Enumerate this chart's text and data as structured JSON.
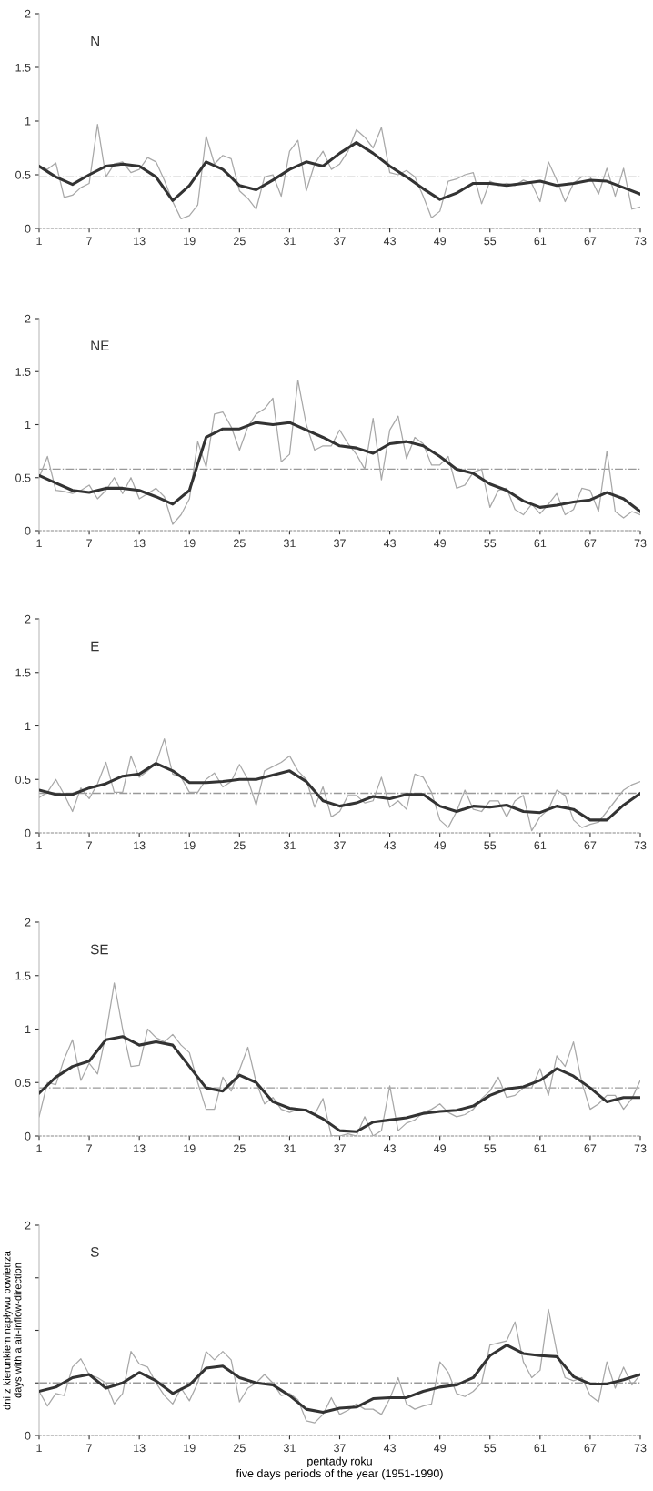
{
  "chart_data": [
    {
      "type": "line",
      "title": "N",
      "xlim": [
        1,
        73
      ],
      "xticks": [
        1,
        7,
        13,
        19,
        25,
        31,
        37,
        43,
        49,
        55,
        61,
        67,
        73
      ],
      "ylim": [
        0,
        2
      ],
      "yticks": [
        0,
        0.5,
        1,
        1.5,
        2
      ],
      "ref_lines": [
        {
          "axis": "y",
          "value": 0.48,
          "color": "#999999",
          "line_style": "dashdot"
        }
      ],
      "series": [
        {
          "color": "#a8a8a8",
          "x": [
            1,
            2,
            3,
            4,
            5,
            6,
            7,
            8,
            9,
            10,
            11,
            12,
            13,
            14,
            15,
            16,
            17,
            18,
            19,
            20,
            21,
            22,
            23,
            24,
            25,
            26,
            27,
            28,
            29,
            30,
            31,
            32,
            33,
            34,
            35,
            36,
            37,
            38,
            39,
            40,
            41,
            42,
            43,
            44,
            45,
            46,
            47,
            48,
            49,
            50,
            51,
            52,
            53,
            54,
            55,
            56,
            57,
            58,
            59,
            60,
            61,
            62,
            63,
            64,
            65,
            66,
            67,
            68,
            69,
            70,
            71,
            72,
            73
          ],
          "values": [
            0.58,
            0.55,
            0.61,
            0.29,
            0.31,
            0.38,
            0.42,
            0.97,
            0.48,
            0.6,
            0.62,
            0.52,
            0.55,
            0.66,
            0.62,
            0.45,
            0.25,
            0.09,
            0.12,
            0.22,
            0.86,
            0.6,
            0.68,
            0.65,
            0.35,
            0.28,
            0.18,
            0.48,
            0.5,
            0.3,
            0.72,
            0.82,
            0.35,
            0.6,
            0.72,
            0.55,
            0.6,
            0.72,
            0.92,
            0.85,
            0.75,
            0.94,
            0.52,
            0.5,
            0.54,
            0.48,
            0.3,
            0.1,
            0.16,
            0.44,
            0.46,
            0.5,
            0.52,
            0.23,
            0.44,
            0.4,
            0.42,
            0.4,
            0.45,
            0.42,
            0.25,
            0.62,
            0.45,
            0.25,
            0.42,
            0.48,
            0.48,
            0.32,
            0.56,
            0.3,
            0.56,
            0.18,
            0.2
          ]
        },
        {
          "color": "#333333",
          "x": [
            1,
            3,
            5,
            7,
            9,
            11,
            13,
            15,
            17,
            19,
            21,
            23,
            25,
            27,
            29,
            31,
            33,
            35,
            37,
            39,
            41,
            43,
            45,
            47,
            49,
            51,
            53,
            55,
            57,
            59,
            61,
            63,
            65,
            67,
            69,
            71,
            73
          ],
          "values": [
            0.58,
            0.48,
            0.41,
            0.5,
            0.58,
            0.6,
            0.58,
            0.48,
            0.26,
            0.4,
            0.62,
            0.55,
            0.4,
            0.36,
            0.45,
            0.55,
            0.62,
            0.58,
            0.7,
            0.8,
            0.7,
            0.58,
            0.48,
            0.37,
            0.27,
            0.33,
            0.42,
            0.42,
            0.4,
            0.42,
            0.44,
            0.4,
            0.42,
            0.45,
            0.44,
            0.38,
            0.32
          ]
        }
      ]
    },
    {
      "type": "line",
      "title": "NE",
      "xlim": [
        1,
        73
      ],
      "xticks": [
        1,
        7,
        13,
        19,
        25,
        31,
        37,
        43,
        49,
        55,
        61,
        67,
        73
      ],
      "ylim": [
        0,
        2
      ],
      "yticks": [
        0,
        0.5,
        1,
        1.5,
        2
      ],
      "ref_lines": [
        {
          "axis": "y",
          "value": 0.58,
          "color": "#999999",
          "line_style": "dashdot"
        }
      ],
      "series": [
        {
          "color": "#a8a8a8",
          "x": [
            1,
            2,
            3,
            4,
            5,
            6,
            7,
            8,
            9,
            10,
            11,
            12,
            13,
            14,
            15,
            16,
            17,
            18,
            19,
            20,
            21,
            22,
            23,
            24,
            25,
            26,
            27,
            28,
            29,
            30,
            31,
            32,
            33,
            34,
            35,
            36,
            37,
            38,
            39,
            40,
            41,
            42,
            43,
            44,
            45,
            46,
            47,
            48,
            49,
            50,
            51,
            52,
            53,
            54,
            55,
            56,
            57,
            58,
            59,
            60,
            61,
            62,
            63,
            64,
            65,
            66,
            67,
            68,
            69,
            70,
            71,
            72,
            73
          ],
          "values": [
            0.5,
            0.7,
            0.38,
            0.37,
            0.35,
            0.38,
            0.43,
            0.3,
            0.38,
            0.5,
            0.35,
            0.5,
            0.3,
            0.35,
            0.4,
            0.32,
            0.06,
            0.15,
            0.3,
            0.84,
            0.6,
            1.1,
            1.12,
            0.98,
            0.76,
            0.98,
            1.1,
            1.15,
            1.25,
            0.65,
            0.72,
            1.42,
            1.0,
            0.76,
            0.8,
            0.8,
            0.95,
            0.82,
            0.72,
            0.58,
            1.06,
            0.48,
            0.95,
            1.08,
            0.68,
            0.88,
            0.82,
            0.62,
            0.62,
            0.7,
            0.4,
            0.43,
            0.55,
            0.58,
            0.22,
            0.38,
            0.4,
            0.2,
            0.15,
            0.25,
            0.16,
            0.25,
            0.35,
            0.15,
            0.2,
            0.4,
            0.38,
            0.18,
            0.75,
            0.18,
            0.12,
            0.18,
            0.15
          ]
        },
        {
          "color": "#333333",
          "x": [
            1,
            3,
            5,
            7,
            9,
            11,
            13,
            15,
            17,
            19,
            21,
            23,
            25,
            27,
            29,
            31,
            33,
            35,
            37,
            39,
            41,
            43,
            45,
            47,
            49,
            51,
            53,
            55,
            57,
            59,
            61,
            63,
            65,
            67,
            69,
            71,
            73
          ],
          "values": [
            0.52,
            0.45,
            0.38,
            0.36,
            0.4,
            0.4,
            0.38,
            0.32,
            0.25,
            0.38,
            0.88,
            0.96,
            0.96,
            1.02,
            1.0,
            1.02,
            0.95,
            0.88,
            0.8,
            0.78,
            0.73,
            0.82,
            0.84,
            0.8,
            0.7,
            0.58,
            0.54,
            0.44,
            0.38,
            0.28,
            0.22,
            0.24,
            0.27,
            0.29,
            0.36,
            0.3,
            0.18
          ]
        }
      ]
    },
    {
      "type": "line",
      "title": "E",
      "xlim": [
        1,
        73
      ],
      "xticks": [
        1,
        7,
        13,
        19,
        25,
        31,
        37,
        43,
        49,
        55,
        61,
        67,
        73
      ],
      "ylim": [
        0,
        2
      ],
      "yticks": [
        0,
        0.5,
        1,
        1.5,
        2
      ],
      "ref_lines": [
        {
          "axis": "y",
          "value": 0.37,
          "color": "#999999",
          "line_style": "dashdot"
        }
      ],
      "series": [
        {
          "color": "#a8a8a8",
          "x": [
            1,
            2,
            3,
            4,
            5,
            6,
            7,
            8,
            9,
            10,
            11,
            12,
            13,
            14,
            15,
            16,
            17,
            18,
            19,
            20,
            21,
            22,
            23,
            24,
            25,
            26,
            27,
            28,
            29,
            30,
            31,
            32,
            33,
            34,
            35,
            36,
            37,
            38,
            39,
            40,
            41,
            42,
            43,
            44,
            45,
            46,
            47,
            48,
            49,
            50,
            51,
            52,
            53,
            54,
            55,
            56,
            57,
            58,
            59,
            60,
            61,
            62,
            63,
            64,
            65,
            66,
            67,
            68,
            69,
            70,
            71,
            72,
            73
          ],
          "values": [
            0.33,
            0.38,
            0.5,
            0.36,
            0.2,
            0.42,
            0.32,
            0.46,
            0.66,
            0.38,
            0.38,
            0.72,
            0.52,
            0.58,
            0.65,
            0.88,
            0.55,
            0.52,
            0.38,
            0.38,
            0.5,
            0.56,
            0.43,
            0.48,
            0.64,
            0.5,
            0.26,
            0.58,
            0.62,
            0.66,
            0.72,
            0.58,
            0.5,
            0.24,
            0.43,
            0.15,
            0.2,
            0.35,
            0.35,
            0.28,
            0.3,
            0.52,
            0.24,
            0.3,
            0.22,
            0.55,
            0.52,
            0.38,
            0.12,
            0.05,
            0.2,
            0.4,
            0.22,
            0.2,
            0.3,
            0.3,
            0.15,
            0.3,
            0.35,
            0.02,
            0.15,
            0.22,
            0.4,
            0.35,
            0.12,
            0.05,
            0.08,
            0.1,
            0.2,
            0.3,
            0.4,
            0.45,
            0.48
          ]
        },
        {
          "color": "#333333",
          "x": [
            1,
            3,
            5,
            7,
            9,
            11,
            13,
            15,
            17,
            19,
            21,
            23,
            25,
            27,
            29,
            31,
            33,
            35,
            37,
            39,
            41,
            43,
            45,
            47,
            49,
            51,
            53,
            55,
            57,
            59,
            61,
            63,
            65,
            67,
            69,
            71,
            73
          ],
          "values": [
            0.4,
            0.36,
            0.36,
            0.42,
            0.46,
            0.53,
            0.55,
            0.65,
            0.58,
            0.47,
            0.47,
            0.48,
            0.5,
            0.5,
            0.54,
            0.58,
            0.48,
            0.3,
            0.25,
            0.28,
            0.34,
            0.32,
            0.36,
            0.36,
            0.25,
            0.2,
            0.25,
            0.24,
            0.26,
            0.2,
            0.19,
            0.25,
            0.22,
            0.12,
            0.12,
            0.26,
            0.37
          ]
        }
      ]
    },
    {
      "type": "line",
      "title": "SE",
      "xlim": [
        1,
        73
      ],
      "xticks": [
        1,
        7,
        13,
        19,
        25,
        31,
        37,
        43,
        49,
        55,
        61,
        67,
        73
      ],
      "ylim": [
        0,
        2
      ],
      "yticks": [
        0,
        0.5,
        1,
        1.5,
        2
      ],
      "ref_lines": [
        {
          "axis": "y",
          "value": 0.45,
          "color": "#999999",
          "line_style": "dashdot"
        }
      ],
      "series": [
        {
          "color": "#a8a8a8",
          "x": [
            1,
            2,
            3,
            4,
            5,
            6,
            7,
            8,
            9,
            10,
            11,
            12,
            13,
            14,
            15,
            16,
            17,
            18,
            19,
            20,
            21,
            22,
            23,
            24,
            25,
            26,
            27,
            28,
            29,
            30,
            31,
            32,
            33,
            34,
            35,
            36,
            37,
            38,
            39,
            40,
            41,
            42,
            43,
            44,
            45,
            46,
            47,
            48,
            49,
            50,
            51,
            52,
            53,
            54,
            55,
            56,
            57,
            58,
            59,
            60,
            61,
            62,
            63,
            64,
            65,
            66,
            67,
            68,
            69,
            70,
            71,
            72,
            73
          ],
          "values": [
            0.18,
            0.5,
            0.48,
            0.72,
            0.9,
            0.52,
            0.68,
            0.58,
            0.95,
            1.43,
            1.0,
            0.65,
            0.66,
            1.0,
            0.92,
            0.88,
            0.95,
            0.85,
            0.78,
            0.5,
            0.25,
            0.25,
            0.55,
            0.42,
            0.62,
            0.83,
            0.5,
            0.3,
            0.36,
            0.25,
            0.22,
            0.25,
            0.25,
            0.2,
            0.35,
            0.0,
            0.0,
            0.02,
            0.0,
            0.18,
            0.0,
            0.05,
            0.47,
            0.05,
            0.12,
            0.15,
            0.22,
            0.25,
            0.3,
            0.22,
            0.18,
            0.2,
            0.25,
            0.35,
            0.42,
            0.55,
            0.36,
            0.38,
            0.45,
            0.45,
            0.63,
            0.38,
            0.75,
            0.65,
            0.88,
            0.5,
            0.25,
            0.3,
            0.38,
            0.38,
            0.25,
            0.35,
            0.52
          ]
        },
        {
          "color": "#333333",
          "x": [
            1,
            3,
            5,
            7,
            9,
            11,
            13,
            15,
            17,
            19,
            21,
            23,
            25,
            27,
            29,
            31,
            33,
            35,
            37,
            39,
            41,
            43,
            45,
            47,
            49,
            51,
            53,
            55,
            57,
            59,
            61,
            63,
            65,
            67,
            69,
            71,
            73
          ],
          "values": [
            0.4,
            0.55,
            0.65,
            0.7,
            0.9,
            0.93,
            0.85,
            0.88,
            0.85,
            0.65,
            0.45,
            0.42,
            0.57,
            0.5,
            0.32,
            0.26,
            0.24,
            0.16,
            0.05,
            0.04,
            0.13,
            0.15,
            0.17,
            0.21,
            0.23,
            0.24,
            0.28,
            0.38,
            0.44,
            0.46,
            0.52,
            0.63,
            0.56,
            0.45,
            0.32,
            0.36,
            0.36
          ]
        }
      ]
    },
    {
      "type": "line",
      "title": "S",
      "xlabel": "pentady roku\nfive days periods of the year (1951-1990)",
      "ylabel": "dni z kierunkiem napływu powietrza\ndays with a air-inflow-direction",
      "xlim": [
        1,
        73
      ],
      "xticks": [
        1,
        7,
        13,
        19,
        25,
        31,
        37,
        43,
        49,
        55,
        61,
        67,
        73
      ],
      "ylim": [
        0,
        2
      ],
      "yticks": [
        0,
        {
          "value": 0.5,
          "label": null
        },
        {
          "value": 1,
          "label": null
        },
        {
          "value": 1.5,
          "label": null
        },
        2
      ],
      "ref_lines": [
        {
          "axis": "y",
          "value": 0.5,
          "color": "#999999",
          "line_style": "dashdot"
        }
      ],
      "series": [
        {
          "color": "#a8a8a8",
          "x": [
            1,
            2,
            3,
            4,
            5,
            6,
            7,
            8,
            9,
            10,
            11,
            12,
            13,
            14,
            15,
            16,
            17,
            18,
            19,
            20,
            21,
            22,
            23,
            24,
            25,
            26,
            27,
            28,
            29,
            30,
            31,
            32,
            33,
            34,
            35,
            36,
            37,
            38,
            39,
            40,
            41,
            42,
            43,
            44,
            45,
            46,
            47,
            48,
            49,
            50,
            51,
            52,
            53,
            54,
            55,
            56,
            57,
            58,
            59,
            60,
            61,
            62,
            63,
            64,
            65,
            66,
            67,
            68,
            69,
            70,
            71,
            72,
            73
          ],
          "values": [
            0.42,
            0.28,
            0.4,
            0.38,
            0.65,
            0.73,
            0.58,
            0.55,
            0.5,
            0.3,
            0.4,
            0.8,
            0.68,
            0.65,
            0.5,
            0.38,
            0.3,
            0.45,
            0.33,
            0.5,
            0.8,
            0.72,
            0.8,
            0.72,
            0.32,
            0.45,
            0.5,
            0.58,
            0.5,
            0.38,
            0.4,
            0.34,
            0.14,
            0.12,
            0.2,
            0.36,
            0.2,
            0.24,
            0.3,
            0.25,
            0.25,
            0.2,
            0.35,
            0.55,
            0.3,
            0.25,
            0.28,
            0.3,
            0.7,
            0.6,
            0.4,
            0.37,
            0.42,
            0.5,
            0.86,
            0.88,
            0.9,
            1.08,
            0.7,
            0.55,
            0.62,
            1.2,
            0.8,
            0.55,
            0.52,
            0.55,
            0.38,
            0.32,
            0.7,
            0.45,
            0.65,
            0.48,
            0.58
          ]
        },
        {
          "color": "#333333",
          "x": [
            1,
            3,
            5,
            7,
            9,
            11,
            13,
            15,
            17,
            19,
            21,
            23,
            25,
            27,
            29,
            31,
            33,
            35,
            37,
            39,
            41,
            43,
            45,
            47,
            49,
            51,
            53,
            55,
            57,
            59,
            61,
            63,
            65,
            67,
            69,
            71,
            73
          ],
          "values": [
            0.42,
            0.46,
            0.55,
            0.58,
            0.45,
            0.5,
            0.6,
            0.52,
            0.4,
            0.48,
            0.64,
            0.66,
            0.55,
            0.5,
            0.48,
            0.38,
            0.25,
            0.22,
            0.26,
            0.27,
            0.35,
            0.36,
            0.36,
            0.42,
            0.46,
            0.48,
            0.55,
            0.76,
            0.86,
            0.78,
            0.76,
            0.75,
            0.56,
            0.49,
            0.49,
            0.53,
            0.58
          ]
        }
      ]
    }
  ]
}
